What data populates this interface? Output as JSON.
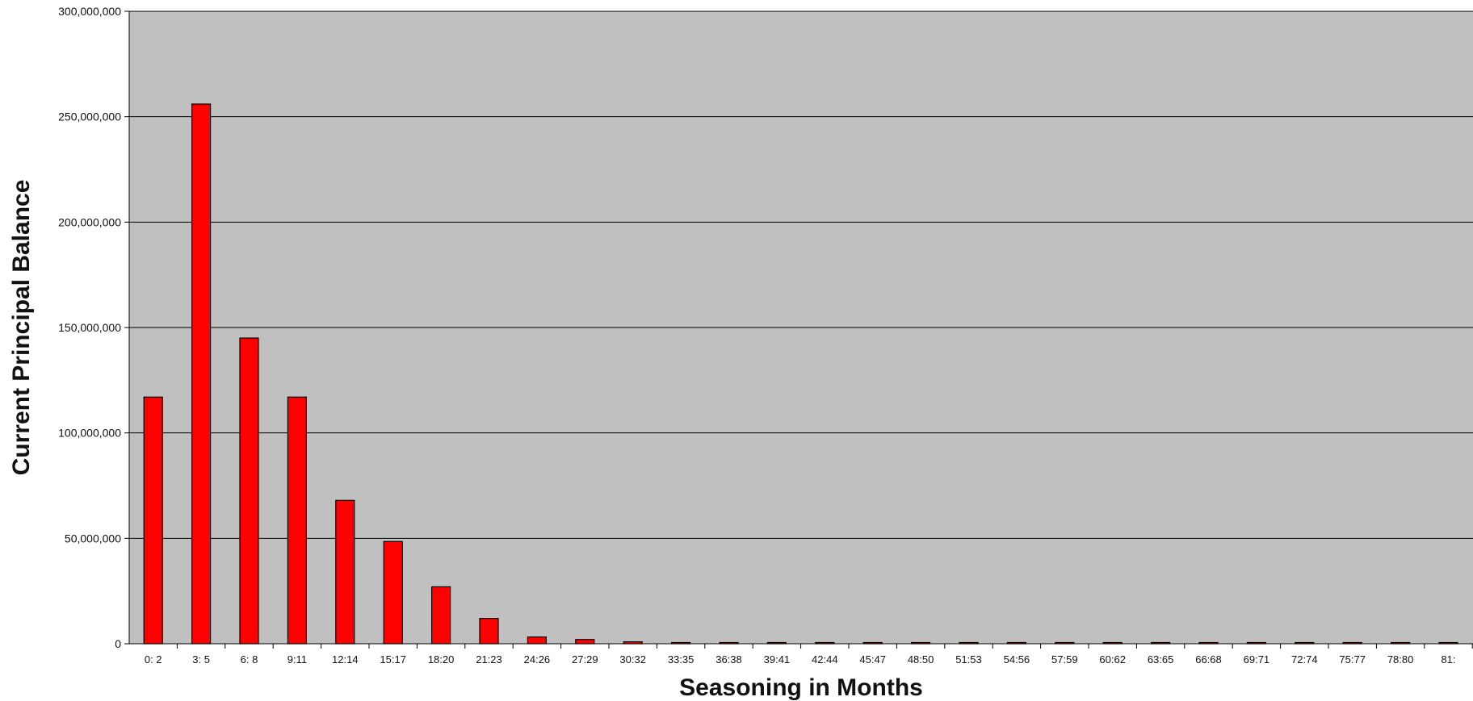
{
  "chart_data": {
    "type": "bar",
    "title": "",
    "xlabel": "Seasoning in Months",
    "ylabel": "Current Principal Balance",
    "ylim": [
      0,
      300000000
    ],
    "yticks": [
      0,
      50000000,
      100000000,
      150000000,
      200000000,
      250000000,
      300000000
    ],
    "ytick_labels": [
      "0",
      "50,000,000",
      "100,000,000",
      "150,000,000",
      "200,000,000",
      "250,000,000",
      "300,000,000"
    ],
    "grid": true,
    "legend": "none",
    "categories": [
      "0: 2",
      "3: 5",
      "6: 8",
      "9:11",
      "12:14",
      "15:17",
      "18:20",
      "21:23",
      "24:26",
      "27:29",
      "30:32",
      "33:35",
      "36:38",
      "39:41",
      "42:44",
      "45:47",
      "48:50",
      "51:53",
      "54:56",
      "57:59",
      "60:62",
      "63:65",
      "66:68",
      "69:71",
      "72:74",
      "75:77",
      "78:80",
      "81:"
    ],
    "values": [
      117000000,
      256000000,
      145000000,
      117000000,
      68000000,
      48500000,
      27000000,
      12000000,
      3200000,
      2000000,
      900000,
      400000,
      200000,
      150000,
      100000,
      100000,
      100000,
      80000,
      80000,
      60000,
      60000,
      50000,
      50000,
      40000,
      40000,
      20000,
      30000,
      20000
    ],
    "colors": {
      "bar": "#ff0000",
      "bar_border": "#000000",
      "plot_background": "#c0c0c0",
      "gridline": "#000000"
    }
  }
}
